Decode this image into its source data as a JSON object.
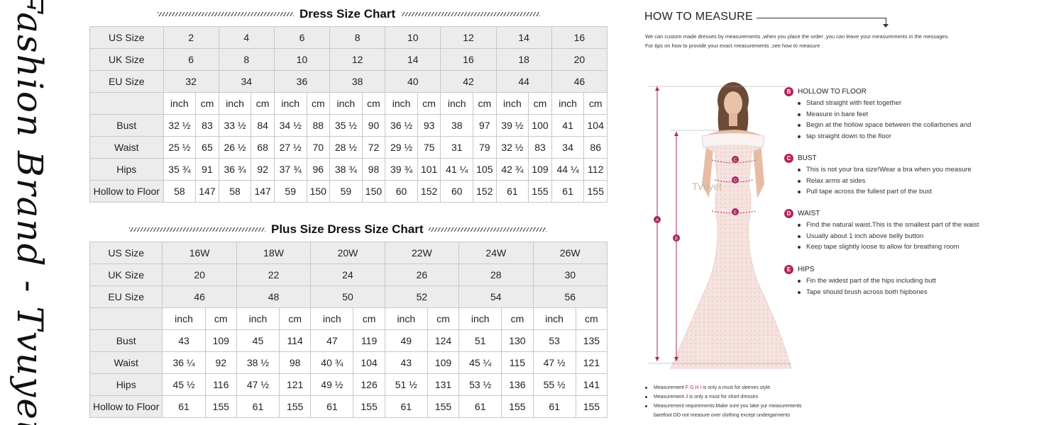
{
  "brand": "Fashion Brand - Tvuyet",
  "dress_chart": {
    "title": "Dress Size Chart",
    "rows": [
      {
        "label": "US Size",
        "cells": [
          "2",
          "4",
          "6",
          "8",
          "10",
          "12",
          "14",
          "16"
        ]
      },
      {
        "label": "UK Size",
        "cells": [
          "6",
          "8",
          "10",
          "12",
          "14",
          "16",
          "18",
          "20"
        ]
      },
      {
        "label": "EU Size",
        "cells": [
          "32",
          "34",
          "36",
          "38",
          "40",
          "42",
          "44",
          "46"
        ]
      }
    ],
    "units": [
      "inch",
      "cm"
    ],
    "measures": [
      {
        "label": "Bust",
        "cells": [
          "32 ½",
          "83",
          "33 ½",
          "84",
          "34 ½",
          "88",
          "35 ½",
          "90",
          "36 ½",
          "93",
          "38",
          "97",
          "39 ½",
          "100",
          "41",
          "104"
        ]
      },
      {
        "label": "Waist",
        "cells": [
          "25 ½",
          "65",
          "26 ½",
          "68",
          "27 ½",
          "70",
          "28 ½",
          "72",
          "29 ½",
          "75",
          "31",
          "79",
          "32 ½",
          "83",
          "34",
          "86"
        ]
      },
      {
        "label": "Hips",
        "cells": [
          "35 ¾",
          "91",
          "36 ¾",
          "92",
          "37 ¾",
          "96",
          "38 ¾",
          "98",
          "39 ¾",
          "101",
          "41 ¼",
          "105",
          "42 ¾",
          "109",
          "44 ¼",
          "112"
        ]
      },
      {
        "label": "Hollow to Floor",
        "cells": [
          "58",
          "147",
          "58",
          "147",
          "59",
          "150",
          "59",
          "150",
          "60",
          "152",
          "60",
          "152",
          "61",
          "155",
          "61",
          "155"
        ]
      }
    ]
  },
  "plus_chart": {
    "title": "Plus Size Dress Size Chart",
    "rows": [
      {
        "label": "US Size",
        "cells": [
          "16W",
          "18W",
          "20W",
          "22W",
          "24W",
          "26W"
        ]
      },
      {
        "label": "UK Size",
        "cells": [
          "20",
          "22",
          "24",
          "26",
          "28",
          "30"
        ]
      },
      {
        "label": "EU Size",
        "cells": [
          "46",
          "48",
          "50",
          "52",
          "54",
          "56"
        ]
      }
    ],
    "units": [
      "inch",
      "cm"
    ],
    "measures": [
      {
        "label": "Bust",
        "cells": [
          "43",
          "109",
          "45",
          "114",
          "47",
          "119",
          "49",
          "124",
          "51",
          "130",
          "53",
          "135"
        ]
      },
      {
        "label": "Waist",
        "cells": [
          "36 ¼",
          "92",
          "38 ½",
          "98",
          "40 ¾",
          "104",
          "43",
          "109",
          "45 ¼",
          "115",
          "47 ½",
          "121"
        ]
      },
      {
        "label": "Hips",
        "cells": [
          "45 ½",
          "116",
          "47 ½",
          "121",
          "49 ½",
          "126",
          "51 ½",
          "131",
          "53 ½",
          "136",
          "55 ½",
          "141"
        ]
      },
      {
        "label": "Hollow to Floor",
        "cells": [
          "61",
          "155",
          "61",
          "155",
          "61",
          "155",
          "61",
          "155",
          "61",
          "155",
          "61",
          "155"
        ]
      }
    ]
  },
  "how_to_measure": {
    "title": "HOW TO MEASURE",
    "intro_1": "We can custom made dresses by measurements ,when you place the order ,you can leave your measurements in the messages.",
    "intro_2": "For tips on how to provide your exact measurements ,see how to measure .",
    "watermark": "Tvuyet",
    "sections": [
      {
        "letter": "B",
        "title": "HOLLOW TO FLOOR",
        "items": [
          "Stand straight with feet together",
          "Measure in bare feet",
          "Begin at the hollow space between the  collarbones and",
          "tap straight down to the floor"
        ]
      },
      {
        "letter": "C",
        "title": "BUST",
        "items": [
          "This is not your bra size!Wear a bra when you measure",
          "Relax arms at sides",
          "Pull tape across the fullest part of the bust"
        ]
      },
      {
        "letter": "D",
        "title": "WAIST",
        "items": [
          "Find the natural waist.This is the smallest part of the waist",
          "Usually about 1 inch above belly button",
          "Keep tape slightly loose to allow for breathing room"
        ]
      },
      {
        "letter": "E",
        "title": "HIPS",
        "items": [
          "Fin the widest part of the hips including butt",
          "Tape should brush across both hipbones"
        ]
      }
    ],
    "figure_markers": [
      "A",
      "B",
      "C",
      "D",
      "E"
    ],
    "notes": {
      "n1_pre": "Measurement ",
      "n1_hl": "F G H I",
      "n1_post": " is only a must for sleeves style",
      "n2_pre": "Measurement ",
      "n2_hl": "J",
      "n2_post": " is only a must for short dresses",
      "n3": "Measurement requirements:Make sure you take yur measurements",
      "n4": "barefoot DO not measure over clothing except undergarments"
    }
  },
  "colors": {
    "accent": "#b3245d",
    "header_bg": "#ececec",
    "border": "#c8c8c8"
  }
}
